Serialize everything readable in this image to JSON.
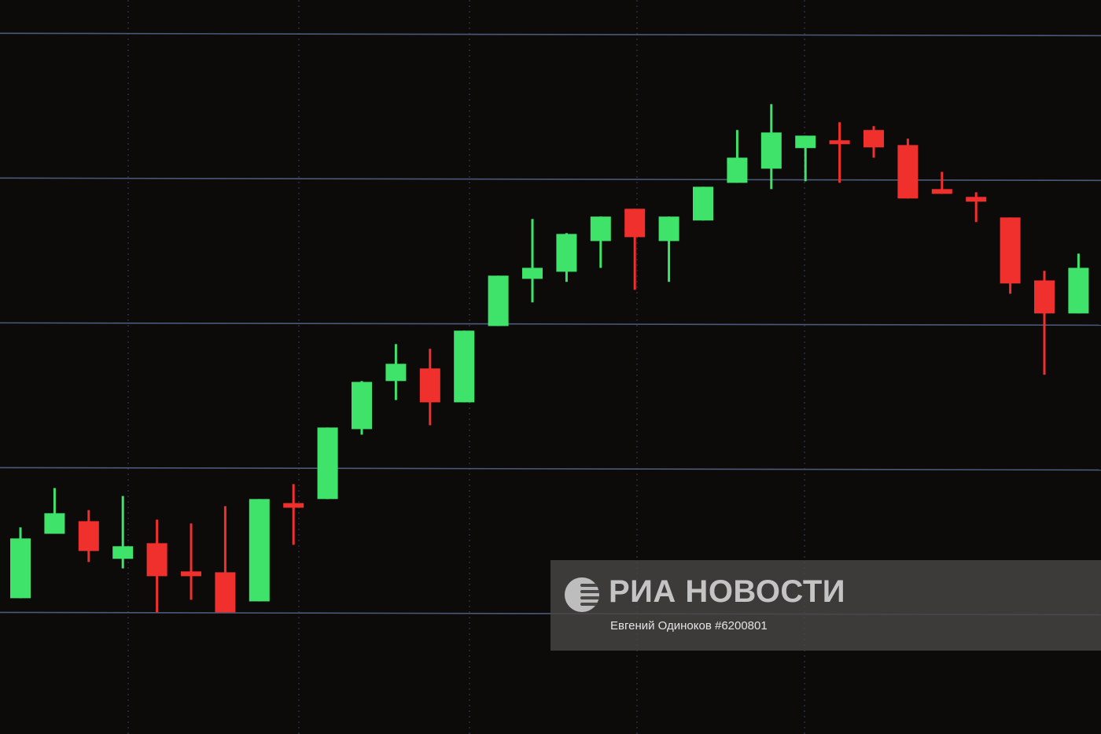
{
  "chart_data": {
    "type": "candlestick",
    "title": "",
    "xlabel": "",
    "ylabel": "",
    "grid": true,
    "gridlines_y": [
      0,
      100,
      200,
      300,
      400
    ],
    "ylim": [
      -84,
      423
    ],
    "colors": {
      "up": "#3fe36a",
      "down": "#f0302c",
      "grid": "#4a5a7a",
      "background": "#0c0b0a"
    },
    "candles": [
      {
        "o": 9.8,
        "h": 58.7,
        "l": 9.8,
        "c": 51.1
      },
      {
        "o": 54.3,
        "h": 85.9,
        "l": 54.3,
        "c": 68.5
      },
      {
        "o": 63.0,
        "h": 70.7,
        "l": 34.8,
        "c": 42.4
      },
      {
        "o": 37.0,
        "h": 80.4,
        "l": 30.4,
        "c": 45.7
      },
      {
        "o": 47.8,
        "h": 64.1,
        "l": 0,
        "c": 25.0
      },
      {
        "o": 28.3,
        "h": 61.4,
        "l": 8.7,
        "c": 25.0
      },
      {
        "o": 27.7,
        "h": 73.4,
        "l": 0,
        "c": 0
      },
      {
        "o": 7.6,
        "h": 78.3,
        "l": 7.6,
        "c": 78.3
      },
      {
        "o": 75.5,
        "h": 88.6,
        "l": 46.7,
        "c": 72.3
      },
      {
        "o": 78.3,
        "h": 127.7,
        "l": 78.3,
        "c": 127.7
      },
      {
        "o": 126.6,
        "h": 159.8,
        "l": 122.8,
        "c": 159.2
      },
      {
        "o": 159.8,
        "h": 185.3,
        "l": 146.7,
        "c": 171.7
      },
      {
        "o": 168.5,
        "h": 182.1,
        "l": 129.3,
        "c": 145.1
      },
      {
        "o": 145.1,
        "h": 194.6,
        "l": 145.1,
        "c": 194.6
      },
      {
        "o": 197.8,
        "h": 232.6,
        "l": 197.8,
        "c": 232.6
      },
      {
        "o": 230.4,
        "h": 271.7,
        "l": 214.1,
        "c": 238.0
      },
      {
        "o": 235.3,
        "h": 262.0,
        "l": 228.3,
        "c": 261.4
      },
      {
        "o": 256.5,
        "h": 273.4,
        "l": 238.0,
        "c": 273.4
      },
      {
        "o": 278.8,
        "h": 278.8,
        "l": 222.8,
        "c": 259.2
      },
      {
        "o": 256.5,
        "h": 273.4,
        "l": 228.3,
        "c": 273.4
      },
      {
        "o": 270.7,
        "h": 294.0,
        "l": 270.7,
        "c": 294.0
      },
      {
        "o": 296.7,
        "h": 333.2,
        "l": 296.7,
        "c": 314.1
      },
      {
        "o": 306.5,
        "h": 351.1,
        "l": 292.4,
        "c": 331.5
      },
      {
        "o": 320.7,
        "h": 329.3,
        "l": 297.8,
        "c": 329.3
      },
      {
        "o": 326.1,
        "h": 338.6,
        "l": 296.7,
        "c": 323.4
      },
      {
        "o": 333.2,
        "h": 335.9,
        "l": 314.1,
        "c": 321.2
      },
      {
        "o": 322.8,
        "h": 327.2,
        "l": 285.9,
        "c": 285.9
      },
      {
        "o": 292.4,
        "h": 304.3,
        "l": 289.1,
        "c": 289.1
      },
      {
        "o": 287.0,
        "h": 290.2,
        "l": 269.6,
        "c": 283.7
      },
      {
        "o": 272.8,
        "h": 272.8,
        "l": 220.1,
        "c": 227.2
      },
      {
        "o": 229.3,
        "h": 235.9,
        "l": 164.1,
        "c": 206.5
      },
      {
        "o": 206.5,
        "h": 247.8,
        "l": 206.5,
        "c": 238.0
      }
    ]
  },
  "watermark": {
    "brand": "РИА НОВОСТИ",
    "credit": "Евгений Одиноков #6200801"
  }
}
